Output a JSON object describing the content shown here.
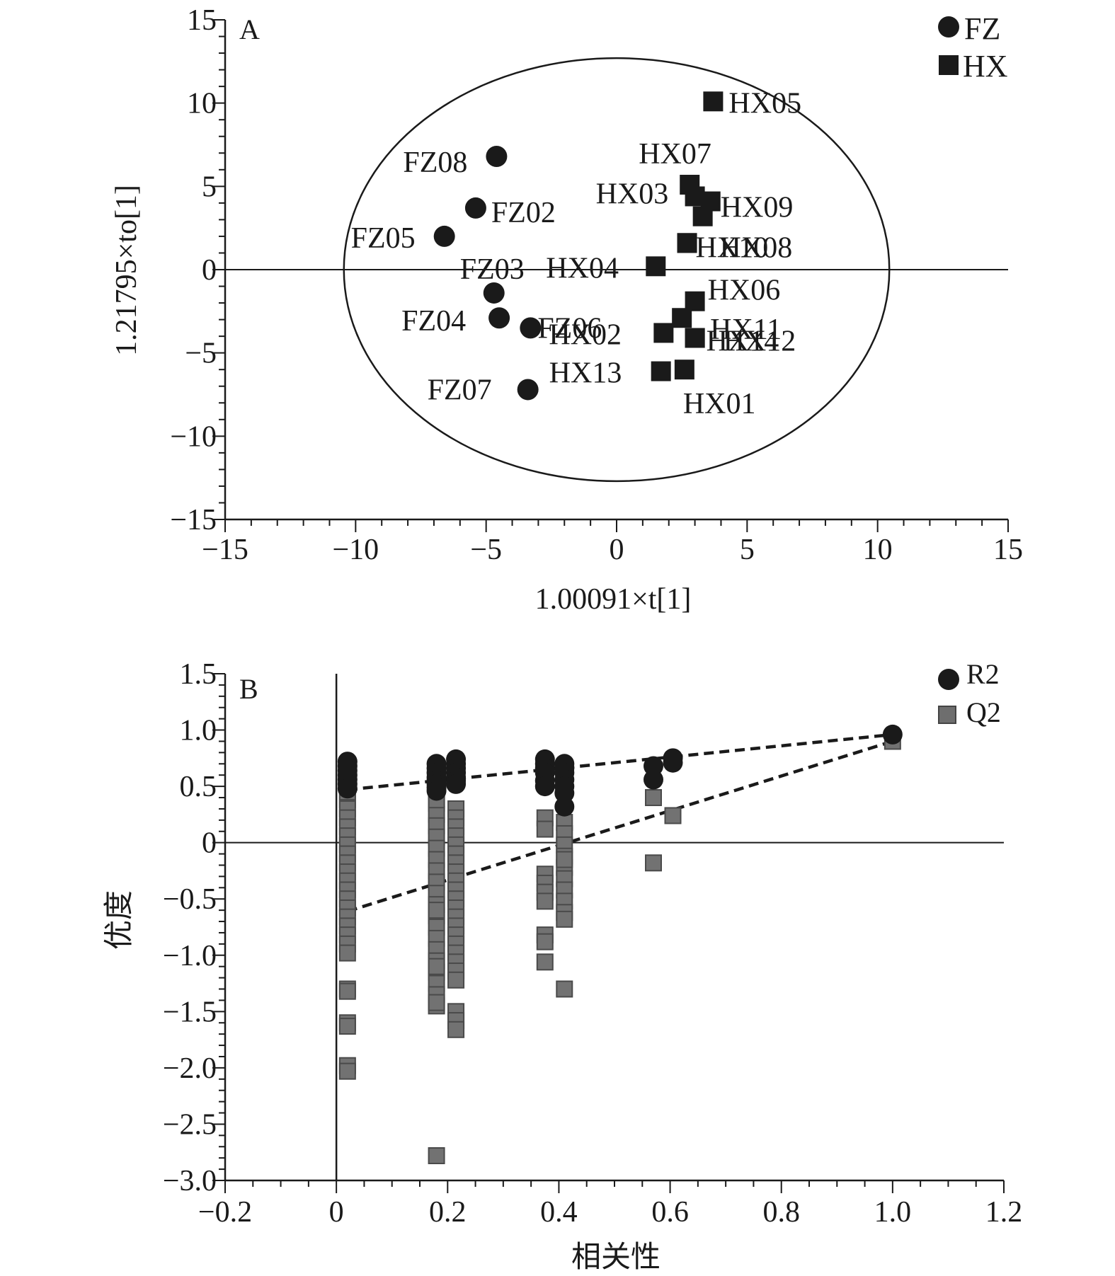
{
  "chart_data": [
    {
      "panel": "A",
      "type": "scatter",
      "xlabel": "1.00091×t[1]",
      "ylabel": "1.21795×to[1]",
      "xlim": [
        -15,
        15
      ],
      "ylim": [
        -15,
        15
      ],
      "xticks": [
        -15,
        -10,
        -5,
        0,
        5,
        10,
        15
      ],
      "yticks": [
        -15,
        -10,
        -5,
        0,
        5,
        10,
        15
      ],
      "xtick_labels": [
        "−15",
        "−10",
        "−5",
        "0",
        "5",
        "10",
        "15"
      ],
      "ytick_labels": [
        "−15",
        "−10",
        "−5",
        "0",
        "5",
        "10",
        "15"
      ],
      "legend_position": "top-right",
      "ellipse": {
        "cx": 0,
        "cy": 0,
        "rx": 10.45,
        "ry": 12.7
      },
      "series": [
        {
          "name": "FZ",
          "marker": "circle",
          "points": [
            {
              "label": "FZ08",
              "x": -4.6,
              "y": 6.8
            },
            {
              "label": "FZ02",
              "x": -5.4,
              "y": 3.7
            },
            {
              "label": "FZ05",
              "x": -6.6,
              "y": 2.0
            },
            {
              "label": "FZ03",
              "x": -4.7,
              "y": -1.4
            },
            {
              "label": "FZ04",
              "x": -4.5,
              "y": -2.9
            },
            {
              "label": "FZ06",
              "x": -3.3,
              "y": -3.5
            },
            {
              "label": "FZ07",
              "x": -3.4,
              "y": -7.2
            }
          ]
        },
        {
          "name": "HX",
          "marker": "square",
          "points": [
            {
              "label": "HX05",
              "x": 3.7,
              "y": 10.1
            },
            {
              "label": "HX07",
              "x": 2.8,
              "y": 5.1
            },
            {
              "label": "HX03",
              "x": 3.0,
              "y": 4.4
            },
            {
              "label": "HX09",
              "x": 3.6,
              "y": 4.1
            },
            {
              "label": "",
              "x": 3.3,
              "y": 3.2
            },
            {
              "label": "HX10",
              "x": 2.7,
              "y": 1.6
            },
            {
              "label": "HX08",
              "x": 2.7,
              "y": 1.6
            },
            {
              "label": "HX04",
              "x": 1.5,
              "y": 0.2
            },
            {
              "label": "HX06",
              "x": 3.0,
              "y": -1.9
            },
            {
              "label": "HX11",
              "x": 2.5,
              "y": -2.9
            },
            {
              "label": "HX02",
              "x": 1.8,
              "y": -3.8
            },
            {
              "label": "HX14",
              "x": 3.0,
              "y": -4.1
            },
            {
              "label": "HX12",
              "x": 3.0,
              "y": -4.1
            },
            {
              "label": "HX13",
              "x": 1.7,
              "y": -6.1
            },
            {
              "label": "HX01",
              "x": 2.6,
              "y": -6.0
            }
          ]
        }
      ]
    },
    {
      "panel": "B",
      "type": "scatter",
      "xlabel": "相关性",
      "ylabel": "优度",
      "xlim": [
        -0.2,
        1.2
      ],
      "ylim": [
        -3.0,
        1.5
      ],
      "xticks": [
        -0.2,
        0,
        0.2,
        0.4,
        0.6,
        0.8,
        1.0,
        1.2
      ],
      "yticks": [
        1.5,
        1.0,
        0.5,
        0,
        -0.5,
        -1.0,
        -1.5,
        -2.0,
        -2.5,
        -3.0
      ],
      "xtick_labels": [
        "−0.2",
        "0",
        "0.2",
        "0.4",
        "0.6",
        "0.8",
        "1.0",
        "1.2"
      ],
      "ytick_labels": [
        "1.5",
        "1.0",
        "0.5",
        "0",
        "−0.5",
        "−1.0",
        "−1.5",
        "−2.0",
        "−2.5",
        "−3.0"
      ],
      "legend_position": "top-right",
      "series": [
        {
          "name": "R2",
          "marker": "circle",
          "x": [
            0.02,
            0.02,
            0.02,
            0.02,
            0.02,
            0.02,
            0.02,
            0.18,
            0.18,
            0.18,
            0.18,
            0.18,
            0.18,
            0.18,
            0.18,
            0.215,
            0.215,
            0.215,
            0.215,
            0.215,
            0.215,
            0.215,
            0.375,
            0.375,
            0.375,
            0.375,
            0.375,
            0.375,
            0.41,
            0.41,
            0.41,
            0.41,
            0.41,
            0.41,
            0.41,
            0.57,
            0.57,
            0.605,
            0.605,
            1.0
          ],
          "y": [
            0.72,
            0.68,
            0.64,
            0.6,
            0.56,
            0.52,
            0.48,
            0.7,
            0.66,
            0.62,
            0.58,
            0.55,
            0.52,
            0.49,
            0.46,
            0.74,
            0.7,
            0.66,
            0.62,
            0.58,
            0.55,
            0.52,
            0.74,
            0.7,
            0.66,
            0.62,
            0.55,
            0.5,
            0.7,
            0.66,
            0.62,
            0.56,
            0.5,
            0.44,
            0.32,
            0.68,
            0.56,
            0.75,
            0.71,
            0.96
          ]
        },
        {
          "name": "Q2",
          "marker": "square",
          "x": [
            0.02,
            0.02,
            0.02,
            0.02,
            0.02,
            0.02,
            0.02,
            0.02,
            0.02,
            0.02,
            0.02,
            0.02,
            0.02,
            0.02,
            0.02,
            0.02,
            0.02,
            0.02,
            0.02,
            0.02,
            0.02,
            0.02,
            0.02,
            0.02,
            0.02,
            0.18,
            0.18,
            0.18,
            0.18,
            0.18,
            0.18,
            0.18,
            0.18,
            0.18,
            0.18,
            0.18,
            0.18,
            0.18,
            0.18,
            0.18,
            0.18,
            0.18,
            0.18,
            0.18,
            0.18,
            0.18,
            0.18,
            0.18,
            0.18,
            0.215,
            0.215,
            0.215,
            0.215,
            0.215,
            0.215,
            0.215,
            0.215,
            0.215,
            0.215,
            0.215,
            0.215,
            0.215,
            0.215,
            0.215,
            0.215,
            0.215,
            0.215,
            0.215,
            0.215,
            0.215,
            0.215,
            0.215,
            0.375,
            0.375,
            0.375,
            0.375,
            0.375,
            0.375,
            0.375,
            0.375,
            0.375,
            0.41,
            0.41,
            0.41,
            0.41,
            0.41,
            0.41,
            0.41,
            0.41,
            0.41,
            0.41,
            0.41,
            0.41,
            0.57,
            0.57,
            0.605,
            1.0
          ],
          "y": [
            0.38,
            0.3,
            0.22,
            0.14,
            0.06,
            -0.02,
            -0.1,
            -0.18,
            -0.26,
            -0.34,
            -0.42,
            -0.5,
            -0.58,
            -0.66,
            -0.74,
            -0.82,
            -0.9,
            -0.98,
            -1.3,
            -1.32,
            -1.6,
            -1.63,
            -1.98,
            -2.03,
            0.45,
            0.35,
            0.25,
            0.15,
            0.05,
            -0.05,
            -0.15,
            -0.25,
            -0.35,
            -0.45,
            -0.55,
            -0.65,
            -0.75,
            -0.85,
            -0.95,
            -1.05,
            -1.15,
            -1.25,
            -1.35,
            -1.45,
            -1.42,
            -2.78,
            -0.6,
            -1.1,
            0.38,
            0.3,
            0.22,
            0.14,
            0.06,
            -0.02,
            -0.1,
            -0.18,
            -0.26,
            -0.34,
            -0.42,
            -0.5,
            -0.58,
            -0.66,
            -0.74,
            -0.82,
            -0.9,
            -0.98,
            -1.06,
            -1.14,
            -1.22,
            -1.5,
            -1.58,
            -1.66,
            0.22,
            0.12,
            -0.28,
            -0.36,
            -0.44,
            -0.52,
            -0.82,
            -0.88,
            -1.06,
            0.18,
            0.08,
            -0.02,
            -0.12,
            -0.22,
            -0.32,
            -0.42,
            -0.52,
            -0.62,
            -0.68,
            -1.3,
            -0.15,
            0.4,
            -0.18,
            0.24,
            0.9
          ]
        }
      ],
      "trend_lines": [
        {
          "series": "R2",
          "from": [
            0.02,
            0.47
          ],
          "to": [
            1.0,
            0.96
          ]
        },
        {
          "series": "Q2",
          "from": [
            0.02,
            -0.61
          ],
          "to": [
            1.0,
            0.9
          ]
        }
      ]
    }
  ],
  "panel_labels": [
    "A",
    "B"
  ]
}
